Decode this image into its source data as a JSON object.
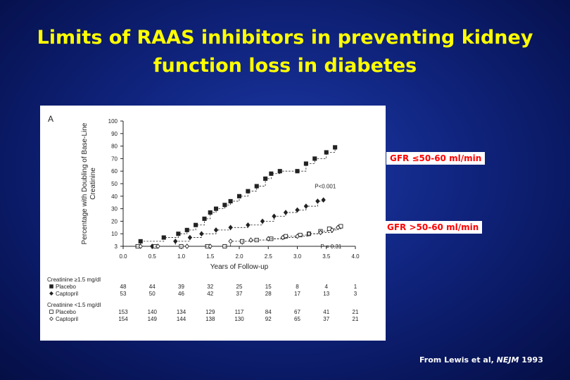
{
  "slide": {
    "title_line1": "Limits of RAAS inhibitors in preventing kidney",
    "title_line2": "function loss in diabetes",
    "callout_upper": "GFR ≤50-60 ml/min",
    "callout_lower": "GFR >50-60 ml/min",
    "citation_prefix": "From Lewis et al,",
    "citation_journal": "NEJM",
    "citation_year": "1993"
  },
  "colors": {
    "title": "#ffff00",
    "callout_text": "#ff0000",
    "background": "#10247e"
  },
  "chart_data": {
    "type": "line",
    "panel_label": "A",
    "xlabel": "Years of Follow-up",
    "ylabel": "Percentage with Doubling of Base-Line Creatinine",
    "xlim": [
      0,
      4.0
    ],
    "x_ticks": [
      "0.0",
      "0.5",
      "1.0",
      "1.5",
      "2.0",
      "2.5",
      "3.0",
      "3.5",
      "4.0"
    ],
    "y_ticks": [
      3,
      10,
      20,
      30,
      40,
      50,
      60,
      70,
      80,
      90,
      100
    ],
    "annotations": [
      {
        "text": "P<0.001",
        "x": 3.3,
        "y": 48
      },
      {
        "text": "P = 0.31",
        "x": 3.4,
        "y": 3
      }
    ],
    "series": [
      {
        "name": "Creatinine ≥1.5 mg/dl — Placebo",
        "marker": "filled-square",
        "dashed": true,
        "x": [
          0.0,
          0.3,
          0.7,
          0.95,
          1.1,
          1.25,
          1.4,
          1.5,
          1.6,
          1.75,
          1.85,
          2.0,
          2.15,
          2.3,
          2.45,
          2.55,
          2.7,
          3.0,
          3.15,
          3.3,
          3.5,
          3.65
        ],
        "y": [
          1,
          4,
          7,
          10,
          13,
          17,
          22,
          27,
          30,
          33,
          36,
          40,
          44,
          48,
          54,
          58,
          60,
          60,
          66,
          70,
          75,
          79
        ]
      },
      {
        "name": "Creatinine ≥1.5 mg/dl — Captopril",
        "marker": "filled-diamond",
        "dashed": true,
        "x": [
          0.0,
          0.5,
          0.9,
          1.15,
          1.35,
          1.6,
          1.85,
          2.15,
          2.4,
          2.6,
          2.8,
          3.0,
          3.15,
          3.35,
          3.45
        ],
        "y": [
          0,
          1,
          4,
          7,
          10,
          13,
          15,
          17,
          20,
          24,
          27,
          29,
          32,
          36,
          37
        ]
      },
      {
        "name": "Creatinine <1.5 mg/dl — Placebo",
        "marker": "open-square",
        "dashed": true,
        "x": [
          0.0,
          0.25,
          0.55,
          1.0,
          1.45,
          1.75,
          2.05,
          2.3,
          2.55,
          2.8,
          3.05,
          3.2,
          3.4,
          3.55,
          3.75
        ],
        "y": [
          0,
          0,
          1,
          1,
          2,
          3,
          4,
          5,
          6,
          8,
          9,
          10,
          12,
          14,
          16
        ]
      },
      {
        "name": "Creatinine <1.5 mg/dl — Captopril",
        "marker": "open-diamond",
        "dashed": true,
        "x": [
          0.0,
          0.3,
          0.6,
          1.1,
          1.5,
          1.85,
          2.2,
          2.5,
          2.75,
          3.0,
          3.2,
          3.4,
          3.6,
          3.7
        ],
        "y": [
          0,
          0,
          1,
          2,
          3,
          4,
          5,
          6,
          7,
          8,
          10,
          11,
          13,
          15
        ]
      }
    ],
    "risk_table": {
      "groups": [
        {
          "title": "Creatinine ≥1.5 mg/dl",
          "rows": [
            {
              "marker": "filled-square",
              "label": "Placebo",
              "values": [
                "48",
                "44",
                "39",
                "32",
                "25",
                "15",
                "8",
                "4",
                "1"
              ]
            },
            {
              "marker": "filled-diamond",
              "label": "Captopril",
              "values": [
                "53",
                "50",
                "46",
                "42",
                "37",
                "28",
                "17",
                "13",
                "3"
              ]
            }
          ]
        },
        {
          "title": "Creatinine <1.5 mg/dl",
          "rows": [
            {
              "marker": "open-square",
              "label": "Placebo",
              "values": [
                "153",
                "140",
                "134",
                "129",
                "117",
                "84",
                "67",
                "41",
                "21"
              ]
            },
            {
              "marker": "open-diamond",
              "label": "Captopril",
              "values": [
                "154",
                "149",
                "144",
                "138",
                "130",
                "92",
                "65",
                "37",
                "21"
              ]
            }
          ]
        }
      ]
    }
  }
}
